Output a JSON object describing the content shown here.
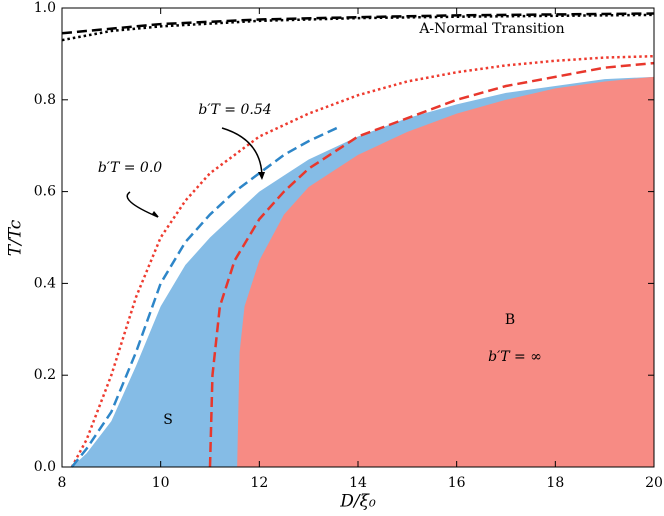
{
  "chart_data": {
    "type": "area-line",
    "xlabel": "D/ξ₀",
    "ylabel": "T/Tc",
    "xlim": [
      8,
      20
    ],
    "ylim": [
      0,
      1
    ],
    "xticks": [
      8,
      10,
      12,
      14,
      16,
      18,
      20
    ],
    "yticks": [
      {
        "value": 0,
        "label": "0.0"
      },
      0.2,
      0.4,
      0.6,
      0.8,
      {
        "value": 1,
        "label": "1.0"
      }
    ],
    "series": [
      {
        "kind": "area",
        "color": "#85bce6",
        "x": [
          8.2,
          8.5,
          9,
          9.5,
          10,
          10.5,
          11,
          11.5,
          12,
          12.5,
          13,
          14,
          15,
          16,
          17,
          18,
          19,
          20
        ],
        "values": [
          0,
          0.03,
          0.1,
          0.22,
          0.35,
          0.44,
          0.5,
          0.55,
          0.6,
          0.635,
          0.67,
          0.72,
          0.76,
          0.79,
          0.815,
          0.83,
          0.845,
          0.85
        ]
      },
      {
        "kind": "area",
        "color": "#f78b84",
        "x": [
          11.55,
          11.6,
          11.7,
          12,
          12.5,
          13,
          14,
          15,
          16,
          17,
          18,
          19,
          20
        ],
        "values": [
          0,
          0.25,
          0.35,
          0.45,
          0.55,
          0.61,
          0.68,
          0.73,
          0.77,
          0.8,
          0.825,
          0.84,
          0.85
        ]
      },
      {
        "kind": "line",
        "style": "dotted",
        "color": "#ee3b2f",
        "x": [
          8.2,
          8.5,
          9,
          9.5,
          10,
          10.5,
          11,
          12,
          13,
          14,
          15,
          16,
          17,
          18,
          19,
          20
        ],
        "values": [
          0,
          0.06,
          0.2,
          0.37,
          0.5,
          0.58,
          0.64,
          0.72,
          0.77,
          0.81,
          0.84,
          0.86,
          0.875,
          0.885,
          0.892,
          0.895
        ]
      },
      {
        "kind": "line",
        "style": "dashed",
        "color": "#2e86c8",
        "x": [
          8.2,
          8.5,
          9,
          9.5,
          10,
          10.5,
          11,
          11.5,
          12,
          12.5,
          13,
          13.6
        ],
        "values": [
          0,
          0.04,
          0.12,
          0.25,
          0.4,
          0.49,
          0.55,
          0.6,
          0.64,
          0.68,
          0.71,
          0.74
        ]
      },
      {
        "kind": "line",
        "style": "dashed",
        "color": "#e8372c",
        "x": [
          11,
          11.05,
          11.2,
          11.5,
          12,
          12.5,
          13,
          14,
          15,
          16,
          17,
          18,
          19,
          20
        ],
        "values": [
          0,
          0.2,
          0.35,
          0.45,
          0.54,
          0.6,
          0.65,
          0.72,
          0.76,
          0.8,
          0.83,
          0.85,
          0.87,
          0.88
        ]
      },
      {
        "kind": "line",
        "style": "dashed",
        "color": "#000000",
        "x": [
          8,
          10,
          12,
          14,
          16,
          18,
          20
        ],
        "values": [
          0.945,
          0.965,
          0.975,
          0.98,
          0.984,
          0.986,
          0.988
        ]
      },
      {
        "kind": "line",
        "style": "dotted",
        "color": "#000000",
        "x": [
          8,
          9,
          10,
          12,
          14,
          16,
          18,
          20
        ],
        "values": [
          0.93,
          0.95,
          0.96,
          0.972,
          0.978,
          0.981,
          0.983,
          0.985
        ]
      }
    ],
    "annotations": [
      "A-Normal Transition",
      "b′T = 0.54",
      "b′T = 0.0",
      "B",
      "b′T = ∞",
      "S"
    ]
  }
}
